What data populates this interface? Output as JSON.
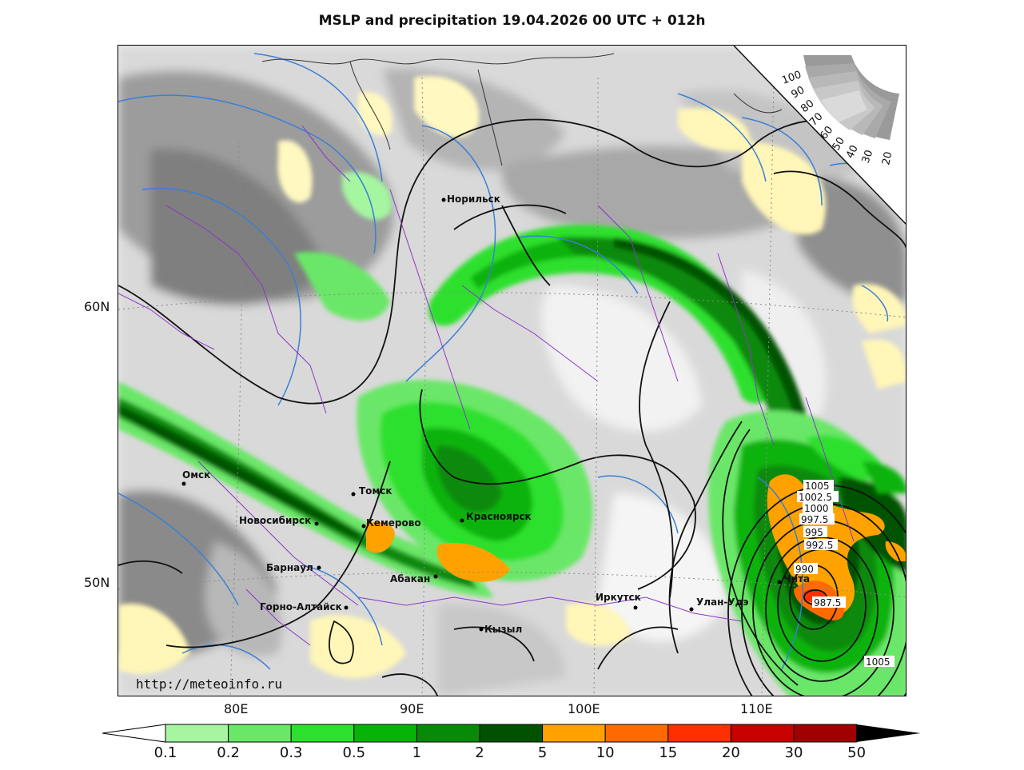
{
  "title": "MSLP and precipitation 19.04.2026 00 UTC + 012h",
  "website": "http://meteoinfo.ru",
  "axes": {
    "lat_labels": [
      "60N",
      "50N"
    ],
    "lon_labels": [
      "80E",
      "90E",
      "100E",
      "110E"
    ]
  },
  "cities": [
    "Норильск",
    "Омск",
    "Томск",
    "Новосибирск",
    "Кемерово",
    "Красноярск",
    "Барнаул",
    "Абакан",
    "Горно-Алтайск",
    "Кызыл",
    "Иркутск",
    "Улан-Удэ",
    "Чита"
  ],
  "isobar_labels": [
    "1005",
    "1002.5",
    "1000",
    "997.5",
    "995",
    "992.5",
    "990",
    "987.5",
    "1005"
  ],
  "humidity_scale": [
    "100",
    "90",
    "80",
    "70",
    "60",
    "50",
    "40",
    "30",
    "20"
  ],
  "legend": {
    "labels": [
      "0.1",
      "0.2",
      "0.3",
      "0.5",
      "1",
      "2",
      "5",
      "10",
      "15",
      "20",
      "30",
      "50"
    ],
    "colors": [
      "#a6f5a0",
      "#6be768",
      "#2ee02e",
      "#07b307",
      "#078a07",
      "#005200",
      "#ffa200",
      "#ff6a00",
      "#ff2f00",
      "#c80000",
      "#a00000"
    ]
  }
}
